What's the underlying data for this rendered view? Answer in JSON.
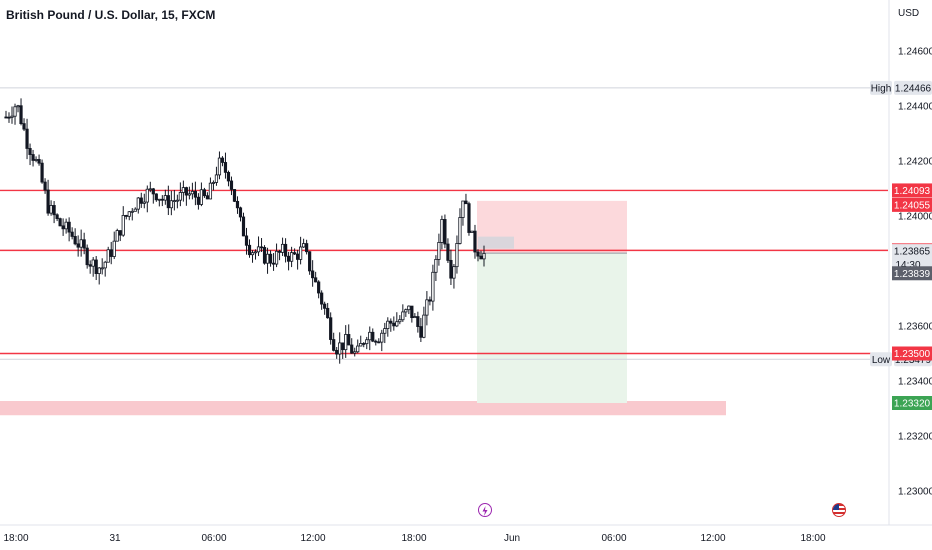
{
  "header": {
    "title": "British Pound / U.S. Dollar, 15, FXCM"
  },
  "axis": {
    "currency": "USD"
  },
  "colors": {
    "up_body": "#ffffff",
    "down_body": "#131722",
    "wick": "#131722",
    "level_line": "#f23645",
    "stop_zone": "#fcd9dc",
    "target_zone": "#e9f4ea",
    "demand_band": "#f9c9ce",
    "badge_red": "#f23645",
    "badge_green": "#3ca454",
    "badge_dark": "#5d606b",
    "badge_light": "#e3e6ec"
  },
  "events": [
    {
      "name": "flash-event-icon",
      "x_label": "21:00"
    },
    {
      "name": "us-flag-event-icon",
      "x_label": "19:30"
    }
  ],
  "chart_data": {
    "type": "candlestick",
    "title": "British Pound / U.S. Dollar, 15, FXCM",
    "symbol": "GBPUSD",
    "interval": "15",
    "source": "FXCM",
    "ylim": [
      1.229,
      1.2472
    ],
    "y_ticks": [
      "1.24600",
      "1.24400",
      "1.24200",
      "1.24000",
      "1.23600",
      "1.23400",
      "1.23200",
      "1.23000"
    ],
    "x_ticks": [
      "18:00",
      "31",
      "06:00",
      "12:00",
      "18:00",
      "Jun",
      "06:00",
      "12:00",
      "18:00"
    ],
    "ohlc_close_path": [
      1.2436,
      1.2441,
      1.2427,
      1.2418,
      1.2403,
      1.2397,
      1.2394,
      1.2389,
      1.2383,
      1.2381,
      1.2388,
      1.2398,
      1.2404,
      1.2408,
      1.2409,
      1.2405,
      1.2406,
      1.2408,
      1.2407,
      1.2406,
      1.2419,
      1.2415,
      1.2398,
      1.2388,
      1.2386,
      1.2384,
      1.2387,
      1.2385,
      1.2388,
      1.2377,
      1.2366,
      1.2352,
      1.2354,
      1.2349,
      1.2358,
      1.2356,
      1.2361,
      1.2362,
      1.2366,
      1.2358,
      1.2372,
      1.2399,
      1.2378,
      1.2408,
      1.2389,
      1.2386
    ],
    "levels": {
      "high": {
        "label": "High",
        "value": "1.24466"
      },
      "low": {
        "label": "Low",
        "value": "1.23479"
      },
      "red_lines": [
        "1.24093",
        "1.23875",
        "1.23500"
      ]
    },
    "price_labels": [
      {
        "value": "1.24093",
        "style": "red"
      },
      {
        "value": "1.24055",
        "style": "red"
      },
      {
        "value": "1.23875",
        "style": "red"
      },
      {
        "value": "1.23865",
        "style": "light",
        "sub": "14:30"
      },
      {
        "value": "1.23839",
        "style": "dark"
      },
      {
        "value": "1.23500",
        "style": "red"
      },
      {
        "value": "1.23320",
        "style": "green"
      }
    ],
    "position": {
      "type": "short",
      "entry": 1.23865,
      "stop": 1.24055,
      "target": 1.2332
    },
    "demand_zone": [
      1.2329,
      1.2332
    ],
    "grid": false
  }
}
